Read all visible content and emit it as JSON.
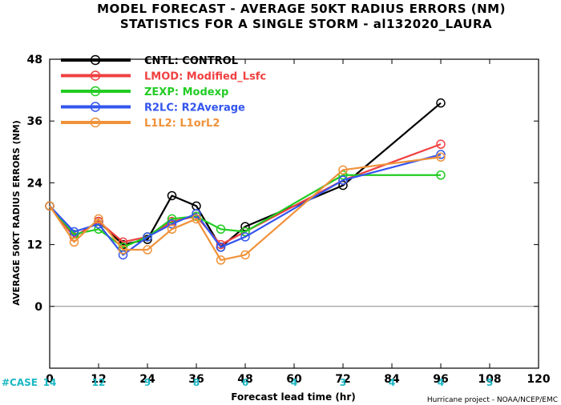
{
  "chart_data": {
    "type": "line",
    "title": "MODEL FORECAST - AVERAGE 50KT RADIUS ERRORS (NM)",
    "subtitle": "STATISTICS FOR A SINGLE STORM - al132020_LAURA",
    "xlabel": "Forecast lead time (hr)",
    "ylabel": "AVERAGE 50KT RADIUS ERRORS (NM)",
    "xlim": [
      0,
      120
    ],
    "ylim": [
      -12,
      48
    ],
    "xticks": [
      0,
      12,
      24,
      36,
      48,
      60,
      72,
      84,
      96,
      108,
      120
    ],
    "yticks": [
      0,
      12,
      24,
      36,
      48
    ],
    "grid": false,
    "legend_position": "top-left",
    "case_label": "#CASE",
    "case_values": [
      {
        "hour": 0,
        "count": "14"
      },
      {
        "hour": 12,
        "count": "12"
      },
      {
        "hour": 24,
        "count": "9"
      },
      {
        "hour": 36,
        "count": "8"
      },
      {
        "hour": 48,
        "count": "6"
      },
      {
        "hour": 60,
        "count": "4"
      },
      {
        "hour": 72,
        "count": "3"
      },
      {
        "hour": 84,
        "count": "4"
      },
      {
        "hour": 96,
        "count": "4"
      },
      {
        "hour": 108,
        "count": "5"
      }
    ],
    "credit": "Hurricane project - NOAA/NCEP/EMC",
    "series": [
      {
        "name": "CNTL: CONTROL",
        "color": "#000000",
        "x": [
          0,
          6,
          12,
          18,
          24,
          30,
          36,
          42,
          48,
          72,
          96
        ],
        "y": [
          19.5,
          13.5,
          16.5,
          12,
          13,
          21.5,
          19.5,
          11.5,
          15.5,
          23.5,
          39.5
        ]
      },
      {
        "name": "LMOD: Modified_Lsfc",
        "color": "#f04040",
        "x": [
          0,
          6,
          12,
          18,
          24,
          30,
          36,
          42,
          48,
          72,
          96
        ],
        "y": [
          19.5,
          13.5,
          16.5,
          12.5,
          13.5,
          16.5,
          17.5,
          12,
          14.5,
          24.5,
          31.5
        ]
      },
      {
        "name": "ZEXP: Modexp",
        "color": "#22cc22",
        "x": [
          0,
          6,
          12,
          18,
          24,
          30,
          36,
          42,
          48,
          72,
          96
        ],
        "y": [
          19.5,
          14,
          15,
          11.5,
          13.5,
          17,
          17.5,
          15,
          14.5,
          25.5,
          25.5
        ]
      },
      {
        "name": "R2LC: R2Average",
        "color": "#3355ee",
        "x": [
          0,
          6,
          12,
          18,
          24,
          30,
          36,
          42,
          48,
          72,
          96
        ],
        "y": [
          19.5,
          14.5,
          16,
          10,
          13.5,
          16,
          18,
          11.5,
          13.5,
          24.5,
          29.5
        ]
      },
      {
        "name": "L1L2: L1orL2",
        "color": "#f0923a",
        "x": [
          0,
          6,
          12,
          18,
          24,
          30,
          36,
          42,
          48,
          72,
          96
        ],
        "y": [
          19.5,
          12.5,
          17,
          11,
          11,
          15,
          17,
          9,
          10,
          26.5,
          29
        ]
      }
    ]
  }
}
